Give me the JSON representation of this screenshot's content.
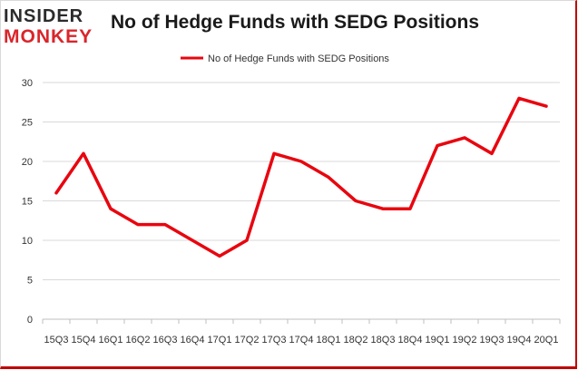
{
  "logo": {
    "line1": "INSIDER",
    "line2": "MONKEY"
  },
  "chart_data": {
    "type": "line",
    "title": "No of Hedge Funds with SEDG Positions",
    "xlabel": "",
    "ylabel": "",
    "categories": [
      "15Q3",
      "15Q4",
      "16Q1",
      "16Q2",
      "16Q3",
      "16Q4",
      "17Q1",
      "17Q2",
      "17Q3",
      "17Q4",
      "18Q1",
      "18Q2",
      "18Q3",
      "18Q4",
      "19Q1",
      "19Q2",
      "19Q3",
      "19Q4",
      "20Q1"
    ],
    "series": [
      {
        "name": "No of Hedge Funds with SEDG Positions",
        "values": [
          16,
          21,
          14,
          12,
          12,
          10,
          8,
          10,
          21,
          20,
          18,
          15,
          14,
          14,
          22,
          23,
          21,
          28,
          27
        ]
      }
    ],
    "yticks": [
      0,
      5,
      10,
      15,
      20,
      25,
      30
    ],
    "ylim": [
      0,
      30
    ],
    "grid": true,
    "legend": "top-center",
    "colors": {
      "line": "#e8060f",
      "grid": "#d9d9d9",
      "axis": "#bfbfbf"
    }
  }
}
